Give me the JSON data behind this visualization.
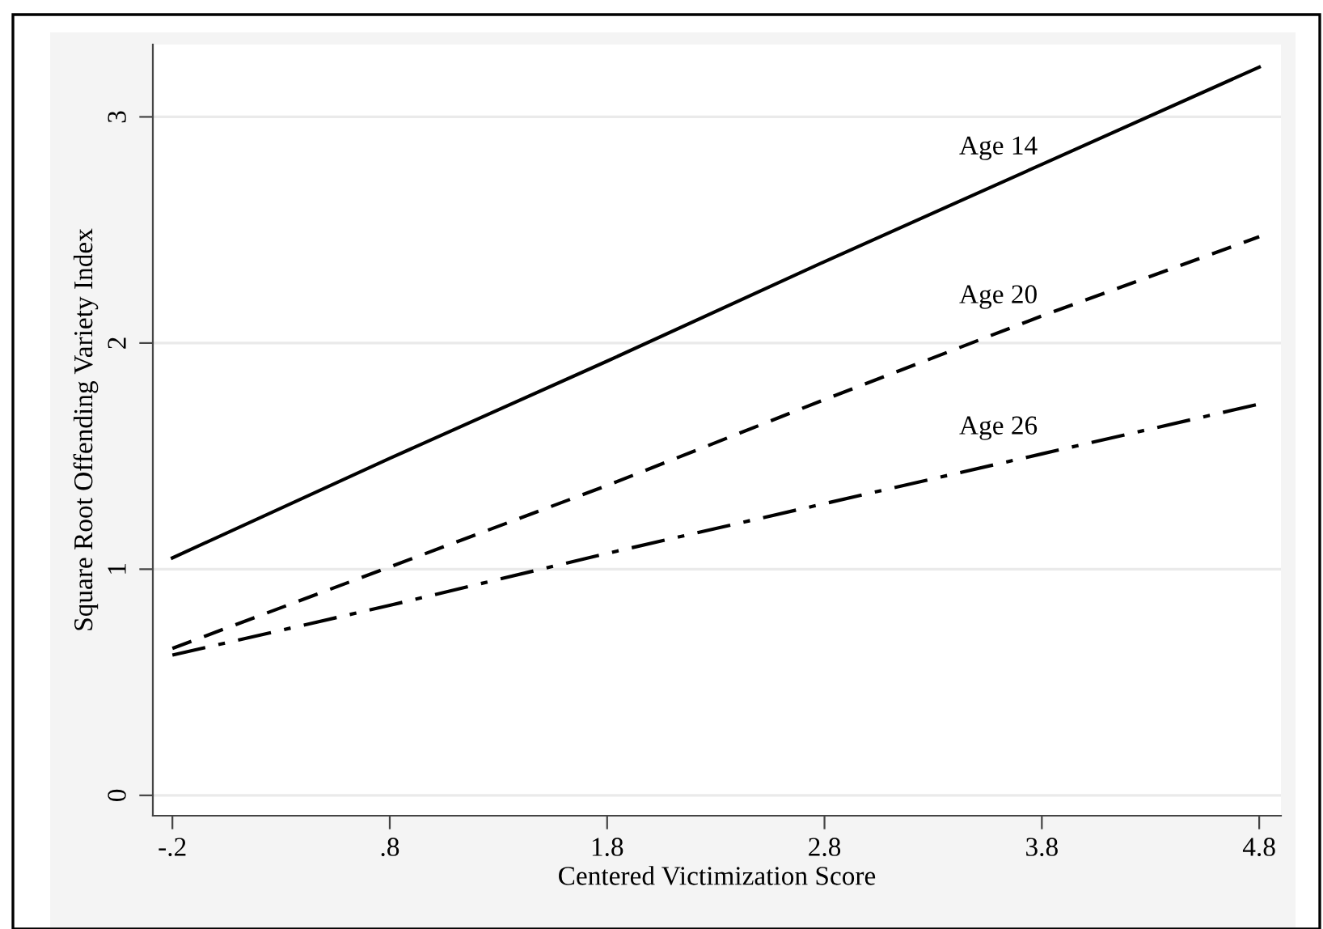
{
  "chart_data": {
    "type": "line",
    "xlabel": "Centered Victimization Score",
    "ylabel": "Square Root Offending Variety Index",
    "x": [
      -0.2,
      0.8,
      1.8,
      2.8,
      3.8,
      4.8
    ],
    "series": [
      {
        "name": "Age 14",
        "color": "#000000",
        "line_style": "solid",
        "values": [
          1.05,
          1.49,
          1.92,
          2.36,
          2.79,
          3.22
        ]
      },
      {
        "name": "Age 20",
        "color": "#000000",
        "line_style": "dashed",
        "values": [
          0.65,
          1.01,
          1.37,
          1.75,
          2.12,
          2.47
        ]
      },
      {
        "name": "Age 26",
        "color": "#000000",
        "line_style": "dashdot",
        "values": [
          0.62,
          0.84,
          1.07,
          1.29,
          1.51,
          1.73
        ]
      }
    ],
    "xlim": [
      -0.29,
      4.9
    ],
    "ylim": [
      -0.09,
      3.32
    ],
    "xticks": [
      {
        "value": -0.2,
        "label": "-.2"
      },
      {
        "value": 0.8,
        "label": ".8"
      },
      1.8,
      2.8,
      3.8,
      4.8
    ],
    "yticks": [
      0,
      1,
      2,
      3
    ],
    "grid": "y",
    "legend": false,
    "marker": "none"
  }
}
